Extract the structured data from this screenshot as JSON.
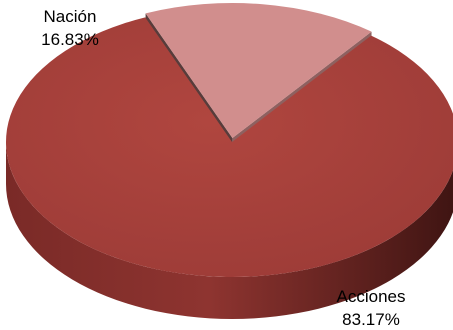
{
  "chart_data": {
    "type": "pie",
    "style": "3d-exploded",
    "slices": [
      {
        "label": "Acciones",
        "value": 83.17,
        "value_label": "83.17%",
        "color": "#a9423e",
        "exploded": false
      },
      {
        "label": "Nación",
        "value": 16.83,
        "value_label": "16.83%",
        "color": "#d18e8d",
        "exploded": true
      }
    ],
    "title": "",
    "legend": "none"
  }
}
